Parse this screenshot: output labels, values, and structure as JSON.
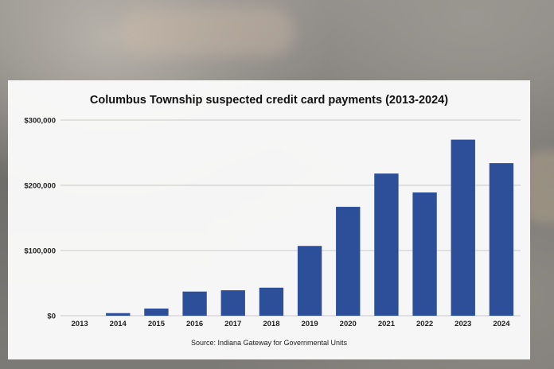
{
  "chart_data": {
    "type": "bar",
    "title": "Columbus Township suspected credit card payments (2013-2024)",
    "source": "Source: Indiana Gateway for Governmental Units",
    "categories": [
      "2013",
      "2014",
      "2015",
      "2016",
      "2017",
      "2018",
      "2019",
      "2020",
      "2021",
      "2022",
      "2023",
      "2024"
    ],
    "values": [
      0,
      4000,
      11000,
      37000,
      39000,
      43000,
      107000,
      167000,
      218000,
      189000,
      270000,
      234000
    ],
    "ylim": [
      0,
      300000
    ],
    "yticks": [
      0,
      100000,
      200000,
      300000
    ],
    "ytick_labels": [
      "$0",
      "$100,000",
      "$200,000",
      "$300,000"
    ],
    "xlabel": "",
    "ylabel": "",
    "grid": true,
    "bar_color": "#2d4f9a",
    "grid_color": "#c8c8c8"
  }
}
